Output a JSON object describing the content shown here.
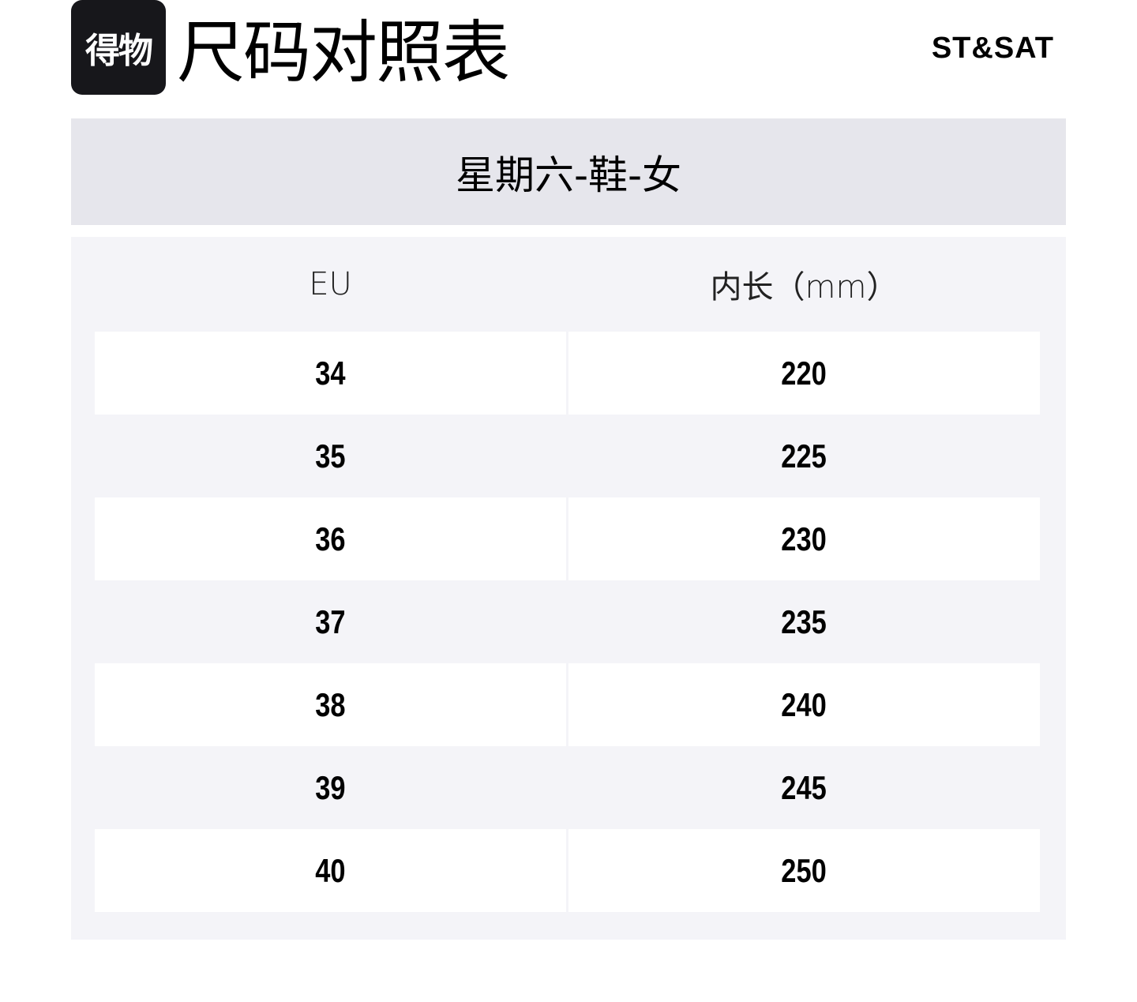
{
  "header": {
    "logo_text": "得物",
    "title": "尺码对照表",
    "brand": "ST&SAT"
  },
  "banner": {
    "label": "星期六-鞋-女"
  },
  "table": {
    "columns": [
      "EU",
      "内长（mm）"
    ],
    "rows": [
      [
        "34",
        "220"
      ],
      [
        "35",
        "225"
      ],
      [
        "36",
        "230"
      ],
      [
        "37",
        "235"
      ],
      [
        "38",
        "240"
      ],
      [
        "39",
        "245"
      ],
      [
        "40",
        "250"
      ]
    ]
  }
}
